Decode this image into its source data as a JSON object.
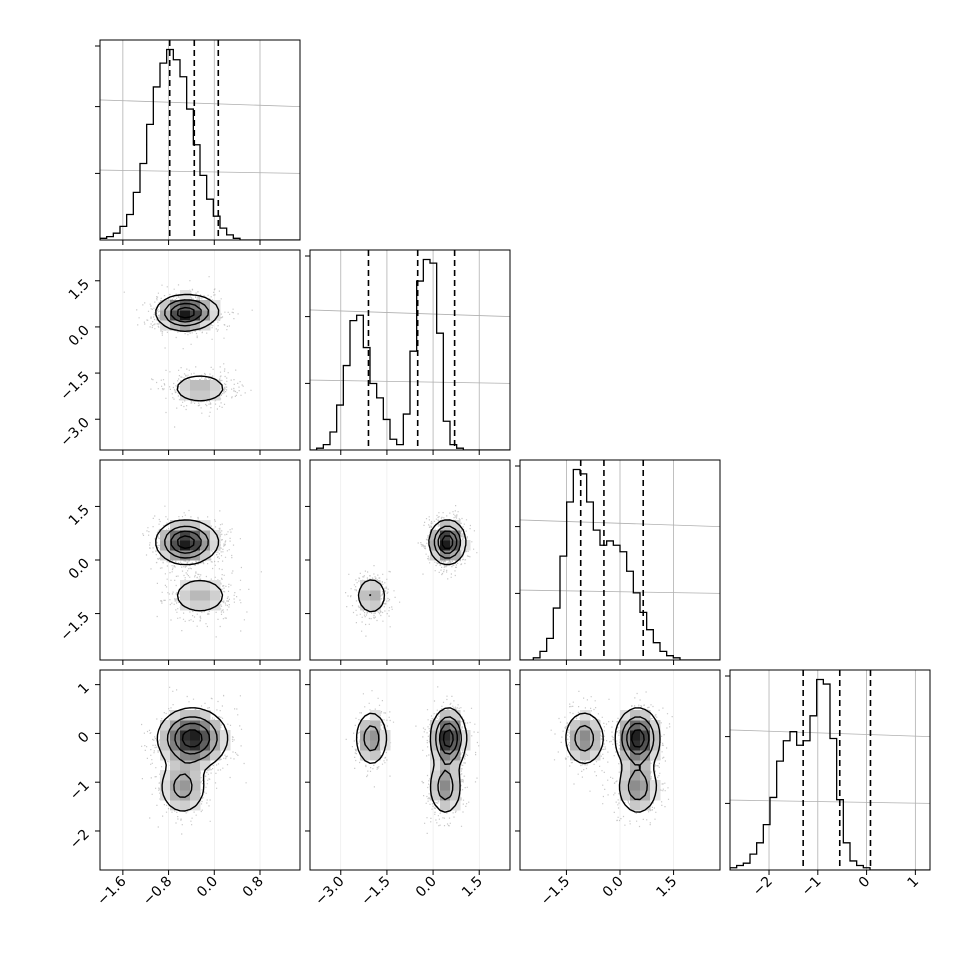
{
  "chart_data": {
    "type": "corner",
    "variables": 4,
    "grid": true,
    "hist_bins": 30,
    "axis_labels": [
      "",
      "",
      "",
      ""
    ],
    "ranges": [
      [
        -2.0,
        1.5
      ],
      [
        -4.0,
        2.5
      ],
      [
        -2.8,
        2.8
      ],
      [
        -2.8,
        1.3
      ]
    ],
    "quantile_lines": [
      [
        -0.78,
        -0.35,
        0.07
      ],
      [
        -2.1,
        -0.5,
        0.7
      ],
      [
        -1.1,
        -0.45,
        0.65
      ],
      [
        -1.3,
        -0.55,
        0.08
      ]
    ],
    "ticks": [
      {
        "values": [
          -1.6,
          -0.8,
          0.0,
          0.8
        ],
        "labels": [
          "−1.6",
          "−0.8",
          "0.0",
          "0.8"
        ]
      },
      {
        "values": [
          -3.0,
          -1.5,
          0.0,
          1.5
        ],
        "labels": [
          "−3.0",
          "−1.5",
          "0.0",
          "1.5"
        ]
      },
      {
        "values": [
          -1.5,
          0.0,
          1.5
        ],
        "labels": [
          "−1.5",
          "0.0",
          "1.5"
        ]
      },
      {
        "values": [
          -2,
          -1,
          0,
          1
        ],
        "labels": [
          "−2",
          "−1",
          "0",
          "1"
        ]
      }
    ],
    "histograms": [
      {
        "variable": 1,
        "counts": [
          1,
          2,
          4,
          8,
          15,
          28,
          45,
          68,
          90,
          104,
          112,
          106,
          96,
          77,
          56,
          38,
          24,
          14,
          7,
          3,
          1,
          0,
          0,
          0,
          0,
          0,
          0,
          0,
          0,
          0
        ]
      },
      {
        "variable": 2,
        "counts": [
          0,
          1,
          3,
          10,
          25,
          47,
          72,
          75,
          57,
          37,
          29,
          17,
          6,
          3,
          20,
          55,
          94,
          106,
          104,
          65,
          16,
          3,
          1,
          0,
          0,
          0,
          0,
          0,
          0,
          0
        ]
      },
      {
        "variable": 3,
        "counts": [
          0,
          0,
          1,
          4,
          10,
          24,
          48,
          73,
          88,
          86,
          73,
          60,
          53,
          55,
          53,
          50,
          41,
          31,
          22,
          14,
          8,
          4,
          2,
          1,
          0,
          0,
          0,
          0,
          0,
          0
        ]
      },
      {
        "variable": 4,
        "counts": [
          1,
          2,
          3,
          7,
          12,
          20,
          32,
          48,
          57,
          61,
          55,
          57,
          68,
          84,
          82,
          58,
          31,
          12,
          4,
          2,
          1,
          0,
          0,
          0,
          0,
          0,
          0,
          0,
          0,
          0
        ]
      }
    ],
    "components": [
      {
        "weight": 0.5,
        "mean": [
          -0.45,
          0.5,
          0.5,
          -0.1
        ],
        "sd": [
          0.28,
          0.28,
          0.3,
          0.3
        ]
      },
      {
        "weight": 0.25,
        "mean": [
          -0.25,
          -2.0,
          -1.0,
          -0.1
        ],
        "sd": [
          0.28,
          0.28,
          0.3,
          0.3
        ]
      },
      {
        "weight": 0.25,
        "mean": [
          -0.55,
          0.4,
          0.5,
          -1.1
        ],
        "sd": [
          0.22,
          0.28,
          0.3,
          0.3
        ]
      }
    ]
  }
}
